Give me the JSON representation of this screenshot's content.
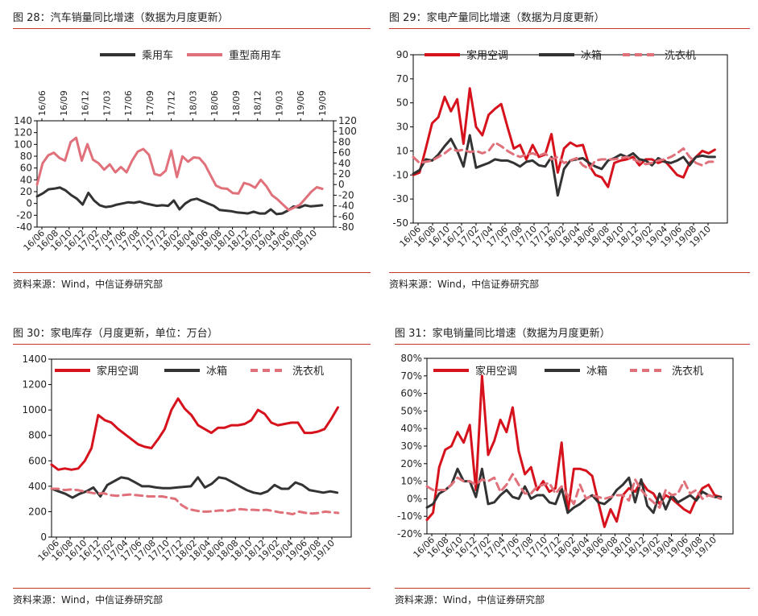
{
  "colors": {
    "red": "#d6121d",
    "black": "#333333",
    "pink": "#e0707a",
    "rule": "#c0392b"
  },
  "source_text": "资料来源：Wind，中信证券研究部",
  "chart_data": [
    {
      "type": "line",
      "title": "图 28：汽车销量同比增速（数据为月度更新）",
      "x_ticks_top": [
        "16/06",
        "16/09",
        "16/12",
        "17/03",
        "17/06",
        "17/09",
        "17/12",
        "18/03",
        "18/06",
        "18/09",
        "18/12",
        "19/03",
        "19/06",
        "19/09"
      ],
      "x_ticks_bottom": [
        "16/06",
        "16/08",
        "16/10",
        "16/12",
        "17/02",
        "17/04",
        "17/06",
        "17/08",
        "17/10",
        "17/12",
        "18/02",
        "18/04",
        "18/06",
        "18/08",
        "18/10",
        "18/12",
        "19/02",
        "19/04",
        "19/06",
        "19/08",
        "19/10"
      ],
      "ylim_left": [
        -40,
        140
      ],
      "yticks_left": [
        -40,
        -20,
        0,
        20,
        40,
        60,
        80,
        100,
        120,
        140
      ],
      "ylim_right": [
        -80,
        120
      ],
      "yticks_right": [
        -80,
        -60,
        -40,
        -20,
        0,
        20,
        40,
        60,
        80,
        100,
        120
      ],
      "legend": "top",
      "series": [
        {
          "name": "乘用车",
          "color_key": "black",
          "axis": "left",
          "values": [
            12,
            17,
            24,
            25,
            27,
            22,
            14,
            8,
            -2,
            18,
            5,
            -3,
            -6,
            -5,
            -2,
            0,
            2,
            1,
            3,
            0,
            -2,
            -4,
            -3,
            -4,
            5,
            -10,
            0,
            6,
            8,
            4,
            0,
            -4,
            -11,
            -12,
            -13,
            -15,
            -16,
            -17,
            -14,
            -17,
            -17,
            -10,
            -18,
            -17,
            -12,
            -5,
            -7,
            -3,
            -5,
            -4,
            -3
          ]
        },
        {
          "name": "重型商用车",
          "color_key": "pink",
          "axis": "right",
          "values": [
            0,
            40,
            55,
            60,
            50,
            45,
            80,
            88,
            45,
            76,
            47,
            40,
            28,
            38,
            23,
            33,
            23,
            45,
            62,
            67,
            56,
            20,
            17,
            26,
            64,
            14,
            53,
            43,
            51,
            50,
            38,
            18,
            -2,
            -7,
            -8,
            -16,
            -17,
            3,
            0,
            -6,
            9,
            -3,
            -20,
            -28,
            -38,
            -48,
            -43,
            -38,
            -26,
            -14,
            -5,
            -8
          ]
        }
      ]
    },
    {
      "type": "line",
      "title": "图 29：家电产量同比增速（数据为月度更新）",
      "x_ticks_bottom": [
        "16/06",
        "16/08",
        "16/10",
        "16/12",
        "17/02",
        "17/04",
        "17/06",
        "17/08",
        "17/10",
        "17/12",
        "18/02",
        "18/04",
        "18/06",
        "18/08",
        "18/10",
        "18/12",
        "19/02",
        "19/04",
        "19/06",
        "19/08",
        "19/10"
      ],
      "ylim": [
        -50,
        90
      ],
      "yticks": [
        -50,
        -30,
        -10,
        10,
        30,
        50,
        70,
        90
      ],
      "legend": "top",
      "series": [
        {
          "name": "家用空调",
          "color_key": "red",
          "values": [
            -10,
            -8,
            12,
            33,
            38,
            55,
            43,
            53,
            16,
            62,
            30,
            23,
            40,
            45,
            49,
            30,
            12,
            15,
            3,
            15,
            5,
            7,
            24,
            -8,
            12,
            17,
            14,
            15,
            -2,
            -10,
            -12,
            -20,
            0,
            2,
            3,
            5,
            -2,
            3,
            3,
            0,
            2,
            -4,
            -10,
            -12,
            0,
            5,
            10,
            8,
            11
          ]
        },
        {
          "name": "冰箱",
          "color_key": "black",
          "values": [
            -9,
            -6,
            3,
            2,
            7,
            14,
            20,
            10,
            -3,
            23,
            -4,
            -2,
            0,
            3,
            2,
            2,
            0,
            -3,
            1,
            2,
            -2,
            -3,
            5,
            -27,
            -5,
            2,
            3,
            4,
            0,
            -3,
            -5,
            2,
            4,
            7,
            5,
            8,
            3,
            2,
            -2,
            4,
            1,
            0,
            2,
            5,
            -2,
            5,
            6,
            5,
            5
          ]
        },
        {
          "name": "洗衣机",
          "color_key": "pink",
          "dashed": true,
          "values": [
            5,
            0,
            1,
            2,
            5,
            8,
            12,
            10,
            11,
            9,
            10,
            8,
            10,
            17,
            14,
            10,
            7,
            5,
            7,
            8,
            6,
            8,
            3,
            5,
            0,
            2,
            4,
            -2,
            -5,
            2,
            3,
            3,
            3,
            4,
            5,
            3,
            1,
            -1,
            0,
            2,
            3,
            5,
            8,
            12,
            5,
            0,
            -2,
            1,
            1
          ]
        }
      ]
    },
    {
      "type": "line",
      "title": "图 30：家电库存（月度更新，单位：万台）",
      "x_ticks_bottom": [
        "16/06",
        "16/08",
        "16/10",
        "16/12",
        "17/02",
        "17/04",
        "17/06",
        "17/08",
        "17/10",
        "17/12",
        "18/02",
        "18/04",
        "18/06",
        "18/08",
        "18/10",
        "18/12",
        "19/02",
        "19/04",
        "19/06",
        "19/08",
        "19/10"
      ],
      "ylim": [
        0,
        1400
      ],
      "yticks": [
        0,
        200,
        400,
        600,
        800,
        1000,
        1200,
        1400
      ],
      "legend": "top",
      "series": [
        {
          "name": "家用空调",
          "color_key": "red",
          "values": [
            570,
            530,
            540,
            530,
            540,
            600,
            700,
            960,
            920,
            900,
            850,
            810,
            770,
            730,
            710,
            700,
            770,
            850,
            1000,
            1090,
            1010,
            960,
            880,
            850,
            820,
            860,
            860,
            880,
            880,
            890,
            920,
            1000,
            970,
            900,
            880,
            890,
            900,
            900,
            820,
            820,
            830,
            850,
            930,
            1020
          ]
        },
        {
          "name": "冰箱",
          "color_key": "black",
          "values": [
            380,
            360,
            340,
            310,
            340,
            360,
            390,
            320,
            410,
            440,
            470,
            460,
            430,
            400,
            400,
            390,
            385,
            385,
            390,
            395,
            400,
            470,
            390,
            420,
            470,
            460,
            430,
            400,
            370,
            350,
            340,
            360,
            410,
            380,
            380,
            430,
            410,
            370,
            360,
            350,
            360,
            350
          ]
        },
        {
          "name": "洗衣机",
          "color_key": "pink",
          "dashed": true,
          "values": [
            380,
            380,
            370,
            375,
            370,
            360,
            350,
            340,
            345,
            330,
            325,
            330,
            335,
            330,
            325,
            320,
            320,
            320,
            310,
            300,
            250,
            220,
            210,
            200,
            200,
            205,
            210,
            205,
            215,
            220,
            215,
            215,
            210,
            215,
            205,
            195,
            190,
            180,
            200,
            190,
            185,
            190,
            200,
            195,
            190
          ]
        }
      ]
    },
    {
      "type": "line",
      "title": "图 31：家电销量同比增速（数据为月度更新）",
      "x_ticks_bottom": [
        "16/06",
        "16/08",
        "16/10",
        "16/12",
        "17/02",
        "17/04",
        "17/06",
        "17/08",
        "17/10",
        "17/12",
        "18/02",
        "18/04",
        "18/06",
        "18/08",
        "18/10",
        "18/12",
        "19/02",
        "19/04",
        "19/06",
        "19/08",
        "19/10"
      ],
      "ylim": [
        -20,
        80
      ],
      "yticks": [
        -20,
        -10,
        0,
        10,
        20,
        30,
        40,
        50,
        60,
        70,
        80
      ],
      "yticklabels": [
        "-20%",
        "-10%",
        "0%",
        "10%",
        "20%",
        "30%",
        "40%",
        "50%",
        "60%",
        "70%",
        "80%"
      ],
      "legend": "top",
      "series": [
        {
          "name": "家用空调",
          "color_key": "red",
          "values": [
            -12,
            -8,
            18,
            28,
            30,
            38,
            32,
            42,
            5,
            70,
            25,
            33,
            45,
            38,
            52,
            27,
            14,
            18,
            5,
            10,
            4,
            6,
            32,
            -8,
            17,
            17,
            16,
            13,
            -2,
            -16,
            -6,
            -13,
            2,
            6,
            4,
            10,
            5,
            3,
            -3,
            2,
            0,
            -3,
            -6,
            -8,
            0,
            6,
            8,
            2,
            1
          ]
        },
        {
          "name": "冰箱",
          "color_key": "black",
          "values": [
            -5,
            -3,
            3,
            5,
            8,
            17,
            10,
            10,
            1,
            17,
            -3,
            -2,
            2,
            5,
            1,
            0,
            7,
            0,
            2,
            2,
            -2,
            -3,
            6,
            -8,
            -5,
            -3,
            0,
            2,
            -2,
            -3,
            0,
            5,
            8,
            12,
            -2,
            11,
            -4,
            -8,
            3,
            -6,
            2,
            -2,
            0,
            2,
            -1,
            4,
            2,
            1,
            1
          ]
        },
        {
          "name": "洗衣机",
          "color_key": "pink",
          "dashed": true,
          "values": [
            7,
            5,
            5,
            5,
            8,
            12,
            10,
            10,
            8,
            11,
            10,
            12,
            4,
            8,
            14,
            8,
            3,
            3,
            7,
            8,
            9,
            3,
            7,
            2,
            -3,
            8,
            0,
            2,
            1,
            0,
            1,
            2,
            2,
            -1,
            11,
            5,
            1,
            -2,
            -5,
            5,
            2,
            3,
            10,
            3,
            5,
            0,
            2,
            1,
            0
          ]
        }
      ]
    }
  ]
}
